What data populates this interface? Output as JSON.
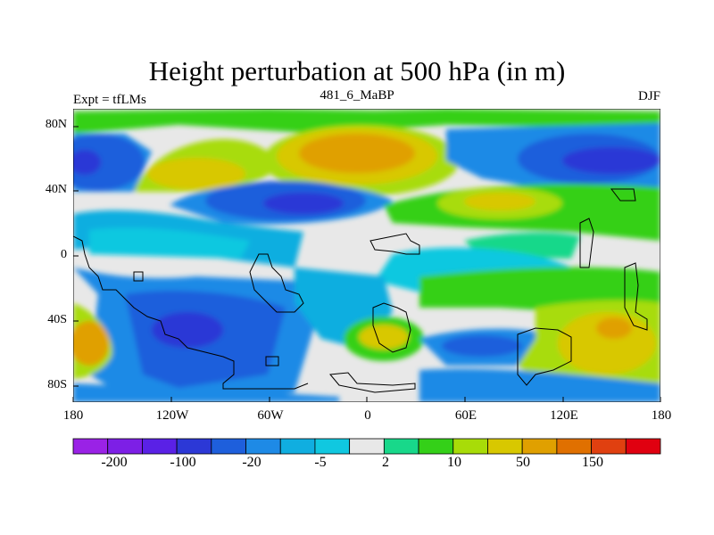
{
  "title": "Height perturbation at 500 hPa (in m)",
  "subtitle_left": "Expt = tfLMs",
  "subtitle_center": "481_6_MaBP",
  "subtitle_right": "DJF",
  "lat_ticks": [
    "80N",
    "40N",
    "0",
    "40S",
    "80S"
  ],
  "lon_ticks": [
    "180",
    "120W",
    "60W",
    "0",
    "60E",
    "120E",
    "180"
  ],
  "colorbar": {
    "labels": [
      "-200",
      "-100",
      "-20",
      "-5",
      "2",
      "10",
      "50",
      "150"
    ],
    "colors": [
      "#9a22e6",
      "#7d1fe6",
      "#5a21e6",
      "#2c38d6",
      "#1e5fdc",
      "#1e8ae6",
      "#10aee0",
      "#10c8e0",
      "#e8e8e8",
      "#18d88a",
      "#34d018",
      "#a8dc08",
      "#d8c800",
      "#e0a000",
      "#e07000",
      "#e04010",
      "#e00010"
    ]
  },
  "colors": {
    "background_field": "#e8e8e8",
    "coast": "#000000"
  }
}
